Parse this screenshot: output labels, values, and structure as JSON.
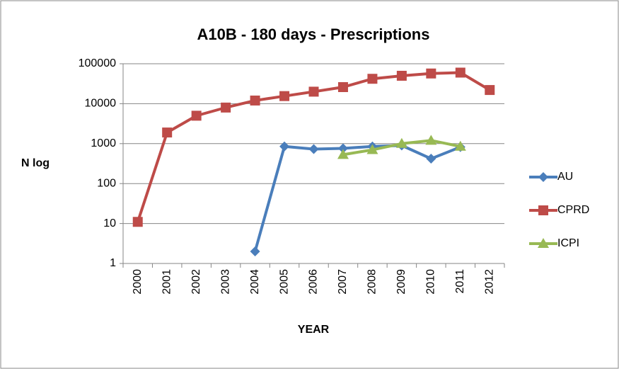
{
  "chart_data": {
    "type": "line",
    "title": "A10B - 180 days - Prescriptions",
    "x_label": "YEAR",
    "y_label": "N log",
    "categories": [
      "2000",
      "2001",
      "2002",
      "2003",
      "2004",
      "2005",
      "2006",
      "2007",
      "2008",
      "2009",
      "2010",
      "2011",
      "2012"
    ],
    "series": [
      {
        "name": "AU",
        "color": "#4a7ebb",
        "marker": "diamond",
        "values": [
          null,
          null,
          null,
          null,
          2,
          850,
          730,
          760,
          850,
          900,
          420,
          820,
          null
        ]
      },
      {
        "name": "CPRD",
        "color": "#be4b48",
        "marker": "square",
        "values": [
          11,
          1900,
          5000,
          8000,
          12000,
          15500,
          20000,
          26000,
          42000,
          50000,
          57000,
          60000,
          22000
        ]
      },
      {
        "name": "ICPI",
        "color": "#98b954",
        "marker": "triangle",
        "values": [
          null,
          null,
          null,
          null,
          null,
          null,
          null,
          530,
          700,
          1000,
          1200,
          850,
          null
        ]
      }
    ],
    "log_scale": true,
    "ylim": [
      1,
      100000
    ],
    "yticks": [
      1,
      10,
      100,
      1000,
      10000,
      100000
    ],
    "grid": true,
    "legend": "right"
  }
}
